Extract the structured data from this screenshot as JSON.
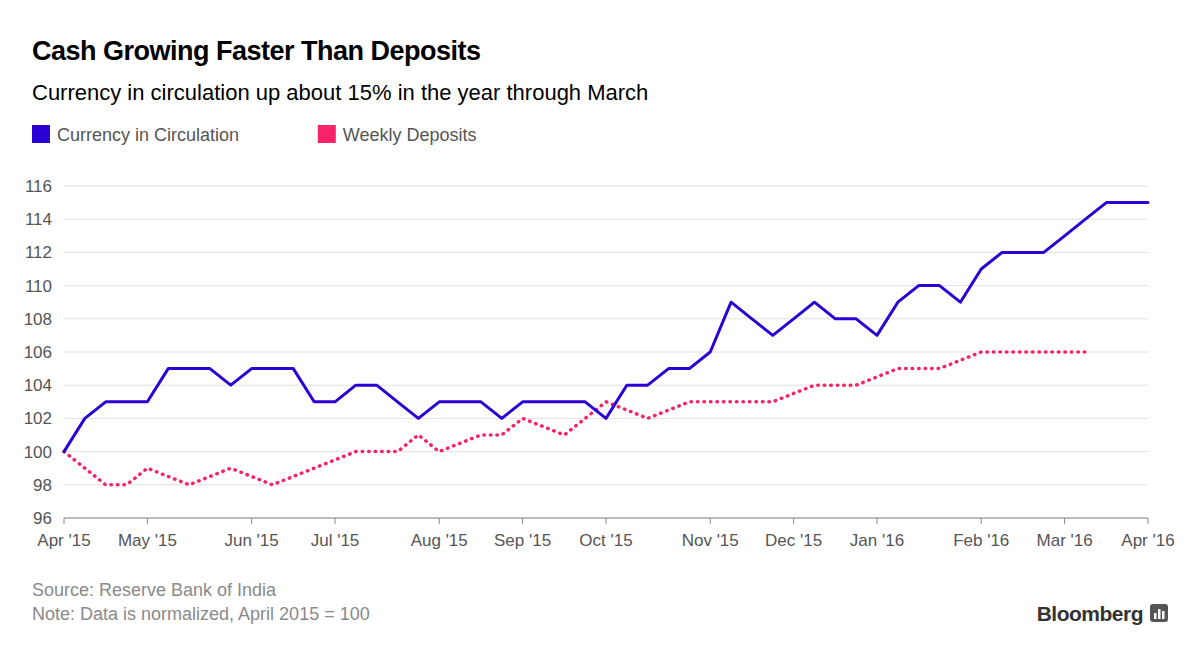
{
  "chart_data": {
    "type": "line",
    "title": "Cash Growing Faster Than Deposits",
    "subtitle": "Currency in circulation up about 15% in the year through March",
    "source": "Source: Reserve Bank of India",
    "note": "Note: Data is normalized, April 2015 = 100",
    "logo": "Bloomberg",
    "categories": [
      "Apr '15",
      null,
      null,
      null,
      "May '15",
      null,
      null,
      null,
      null,
      "Jun '15",
      null,
      null,
      null,
      "Jul '15",
      null,
      null,
      null,
      null,
      "Aug '15",
      null,
      null,
      null,
      "Sep '15",
      null,
      null,
      null,
      "Oct '15",
      null,
      null,
      null,
      null,
      "Nov '15",
      null,
      null,
      null,
      "Dec '15",
      null,
      null,
      null,
      "Jan '16",
      null,
      null,
      null,
      null,
      "Feb '16",
      null,
      null,
      null,
      "Mar '16",
      null,
      null,
      null,
      "Apr '16"
    ],
    "series": [
      {
        "name": "Currency in Circulation",
        "color": "#2a00d4",
        "line_style": "solid",
        "values": [
          100,
          102,
          103,
          103,
          103,
          105,
          105,
          105,
          104,
          105,
          105,
          105,
          103,
          103,
          104,
          104,
          103,
          102,
          103,
          103,
          103,
          102,
          103,
          103,
          103,
          103,
          102,
          104,
          104,
          105,
          105,
          106,
          109,
          108,
          107,
          108,
          109,
          108,
          108,
          107,
          109,
          110,
          110,
          109,
          111,
          112,
          112,
          112,
          113,
          114,
          115,
          115,
          115
        ]
      },
      {
        "name": "Weekly Deposits",
        "color": "#f7226c",
        "line_style": "dotted",
        "values": [
          100,
          99,
          98,
          98,
          99,
          98.5,
          98,
          98.5,
          99,
          98.5,
          98,
          98.5,
          99,
          99.5,
          100,
          100,
          100,
          101,
          100,
          100.5,
          101,
          101,
          102,
          101.5,
          101,
          102,
          103,
          102.5,
          102,
          102.5,
          103,
          103,
          103,
          103,
          103,
          103.5,
          104,
          104,
          104,
          104.5,
          105,
          105,
          105,
          105.5,
          106,
          106,
          106,
          106,
          106,
          106,
          null,
          null,
          null
        ]
      }
    ],
    "ylim": [
      96,
      116
    ],
    "yticks": [
      96,
      98,
      100,
      102,
      104,
      106,
      108,
      110,
      112,
      114,
      116
    ],
    "grid": true,
    "legend": "top"
  }
}
